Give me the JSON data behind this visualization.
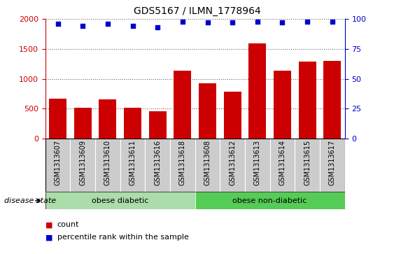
{
  "title": "GDS5167 / ILMN_1778964",
  "samples": [
    "GSM1313607",
    "GSM1313609",
    "GSM1313610",
    "GSM1313611",
    "GSM1313616",
    "GSM1313618",
    "GSM1313608",
    "GSM1313612",
    "GSM1313613",
    "GSM1313614",
    "GSM1313615",
    "GSM1313617"
  ],
  "counts": [
    670,
    510,
    650,
    510,
    460,
    1130,
    930,
    780,
    1590,
    1130,
    1290,
    1300
  ],
  "percentile_ranks": [
    96,
    94,
    96,
    94,
    93,
    98,
    97,
    97,
    98,
    97,
    98,
    98
  ],
  "bar_color": "#cc0000",
  "dot_color": "#0000cc",
  "ylim_left": [
    0,
    2000
  ],
  "ylim_right": [
    0,
    100
  ],
  "yticks_left": [
    0,
    500,
    1000,
    1500,
    2000
  ],
  "yticks_right": [
    0,
    25,
    50,
    75,
    100
  ],
  "groups": [
    {
      "label": "obese diabetic",
      "start": 0,
      "end": 6,
      "color": "#aaddaa"
    },
    {
      "label": "obese non-diabetic",
      "start": 6,
      "end": 12,
      "color": "#55cc55"
    }
  ],
  "disease_state_label": "disease state",
  "legend_items": [
    {
      "label": "count",
      "color": "#cc0000"
    },
    {
      "label": "percentile rank within the sample",
      "color": "#0000cc"
    }
  ],
  "left_axis_color": "#cc0000",
  "right_axis_color": "#0000cc",
  "gray_box_color": "#cccccc",
  "grid_color": "#000000",
  "title_fontsize": 10,
  "tick_fontsize": 8,
  "label_fontsize": 7,
  "group_fontsize": 8
}
